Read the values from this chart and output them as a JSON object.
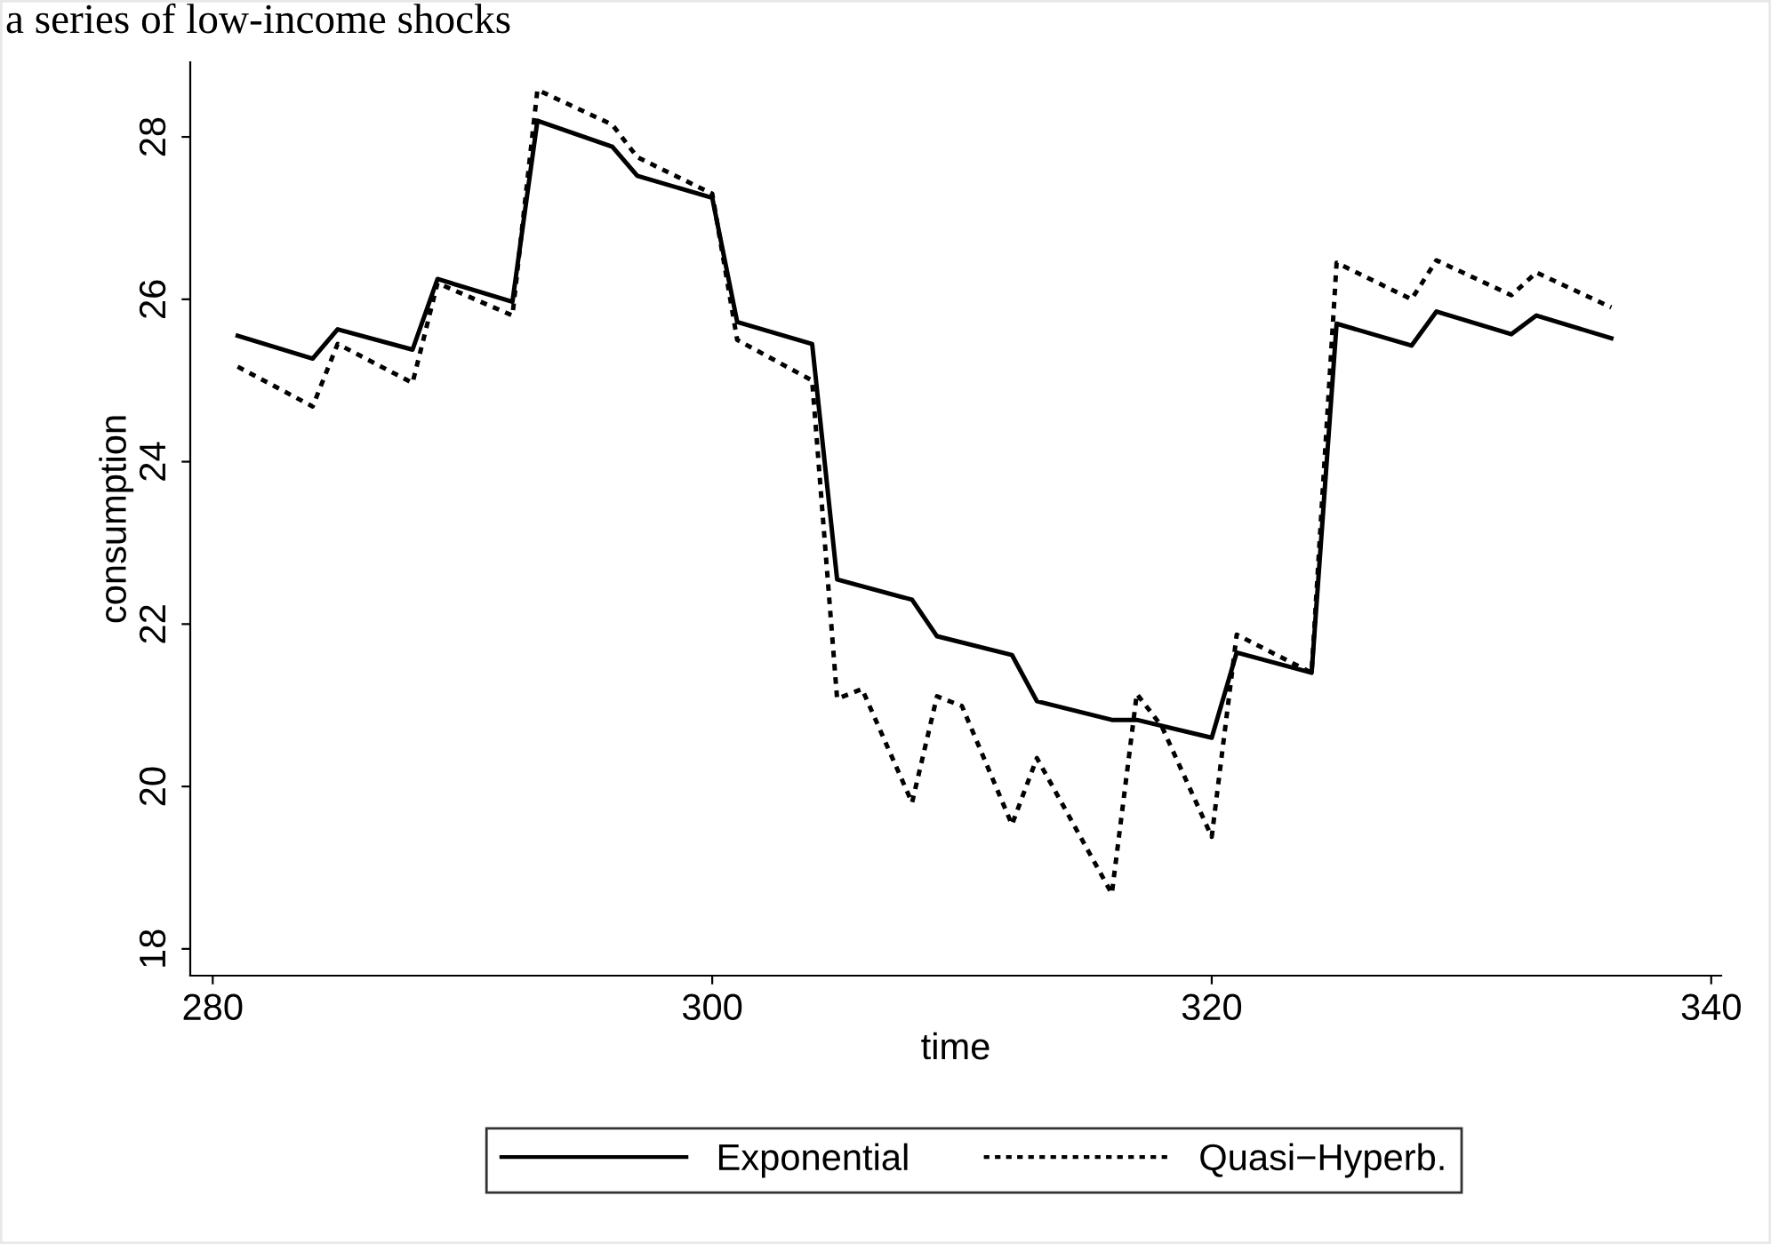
{
  "chart_data": {
    "type": "line",
    "title": "a series of low-income shocks",
    "xlabel": "time",
    "ylabel": "consumption",
    "xlim": [
      279.1,
      340.4
    ],
    "xticks": [
      280,
      300,
      320,
      340
    ],
    "ylim": [
      17.67,
      28.92
    ],
    "yticks": [
      18,
      20,
      22,
      24,
      26,
      28
    ],
    "grid": false,
    "legend": "bottom",
    "series": [
      {
        "name": "Exponential",
        "color": "#000000",
        "line_style": "solid",
        "x": [
          281,
          284,
          285,
          288,
          289,
          292,
          293,
          296,
          297,
          300,
          301,
          304,
          305,
          308,
          309,
          312,
          313,
          316,
          317,
          320,
          321,
          324,
          325,
          328,
          329,
          332,
          333,
          336
        ],
        "values": [
          25.55,
          25.27,
          25.63,
          25.38,
          26.25,
          25.97,
          28.2,
          27.88,
          27.52,
          27.25,
          25.72,
          25.45,
          22.55,
          22.3,
          21.85,
          21.62,
          21.05,
          20.82,
          20.82,
          20.6,
          21.65,
          21.4,
          25.7,
          25.43,
          25.85,
          25.57,
          25.8,
          25.52
        ]
      },
      {
        "name": "Quasi−Hyperb.",
        "color": "#000000",
        "line_style": "dotted",
        "x": [
          281,
          284,
          285,
          288,
          289,
          292,
          293,
          296,
          297,
          300,
          301,
          304,
          305,
          306,
          308,
          309,
          310,
          312,
          313,
          316,
          317,
          318,
          320,
          321,
          324,
          325,
          328,
          329,
          332,
          333,
          336
        ],
        "values": [
          25.17,
          24.68,
          25.45,
          24.97,
          26.2,
          25.8,
          28.58,
          28.15,
          27.75,
          27.3,
          25.5,
          25.0,
          21.08,
          21.2,
          19.8,
          21.11,
          20.99,
          19.53,
          20.35,
          18.68,
          21.14,
          20.74,
          19.38,
          21.87,
          21.4,
          26.45,
          26.0,
          26.48,
          26.05,
          26.33,
          25.9
        ]
      }
    ]
  }
}
